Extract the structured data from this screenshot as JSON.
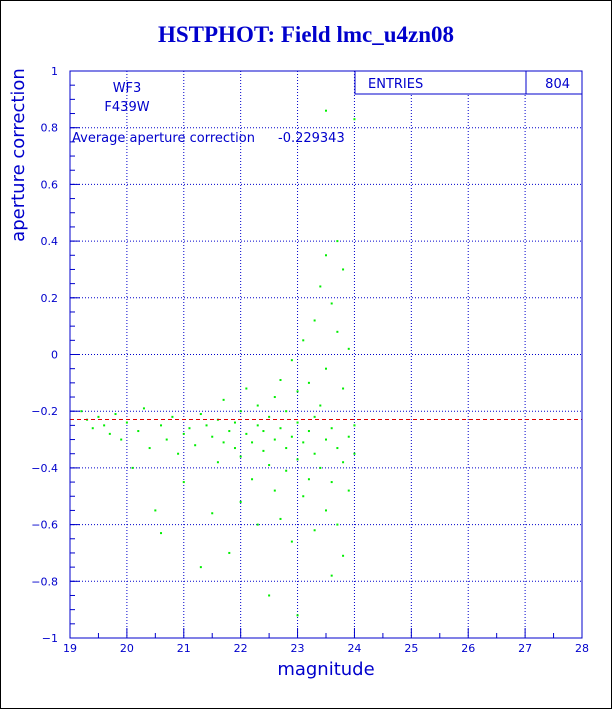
{
  "title": "HSTPHOT: Field lmc_u4zn08",
  "colors": {
    "axis": "#0000cc",
    "grid": "#0000cc",
    "points": "#00ee00",
    "average_line": "#dd0000",
    "title": "#0000cc"
  },
  "chart_data": {
    "type": "scatter",
    "title": "HSTPHOT: Field lmc_u4zn08",
    "xlabel": "magnitude",
    "ylabel": "aperture correction",
    "xlim": [
      19,
      28
    ],
    "ylim": [
      -1,
      1
    ],
    "x_ticks": [
      "19",
      "20",
      "21",
      "22",
      "23",
      "24",
      "25",
      "26",
      "27",
      "28"
    ],
    "y_ticks": [
      "1",
      "0.8",
      "0.6",
      "0.4",
      "0.2",
      "0",
      "-0.2",
      "-0.4",
      "-0.6",
      "-0.8",
      "-1"
    ],
    "grid": true,
    "camera": "WF3",
    "filter": "F439W",
    "average_label": "Average aperture correction",
    "average_value": "-0.229343",
    "average_y": -0.229343,
    "stats": {
      "label": "ENTRIES",
      "value": "804"
    },
    "series": [
      {
        "points": [
          [
            19.2,
            -0.2
          ],
          [
            19.3,
            -0.23
          ],
          [
            19.4,
            -0.26
          ],
          [
            19.5,
            -0.22
          ],
          [
            19.6,
            -0.25
          ],
          [
            19.7,
            -0.28
          ],
          [
            19.8,
            -0.21
          ],
          [
            19.9,
            -0.3
          ],
          [
            20.0,
            -0.24
          ],
          [
            20.1,
            -0.4
          ],
          [
            20.2,
            -0.27
          ],
          [
            20.3,
            -0.19
          ],
          [
            20.4,
            -0.33
          ],
          [
            20.5,
            -0.55
          ],
          [
            20.6,
            -0.25
          ],
          [
            20.6,
            -0.63
          ],
          [
            20.7,
            -0.3
          ],
          [
            20.8,
            -0.22
          ],
          [
            20.9,
            -0.35
          ],
          [
            21.0,
            -0.28
          ],
          [
            21.0,
            -0.45
          ],
          [
            21.1,
            -0.26
          ],
          [
            21.2,
            -0.32
          ],
          [
            21.3,
            -0.21
          ],
          [
            21.3,
            -0.75
          ],
          [
            21.4,
            -0.25
          ],
          [
            21.5,
            -0.29
          ],
          [
            21.5,
            -0.56
          ],
          [
            21.6,
            -0.23
          ],
          [
            21.6,
            -0.38
          ],
          [
            21.7,
            -0.31
          ],
          [
            21.7,
            -0.16
          ],
          [
            21.8,
            -0.27
          ],
          [
            21.8,
            -0.7
          ],
          [
            21.9,
            -0.33
          ],
          [
            21.9,
            -0.24
          ],
          [
            22.0,
            -0.2
          ],
          [
            22.0,
            -0.36
          ],
          [
            22.0,
            -0.52
          ],
          [
            22.1,
            -0.28
          ],
          [
            22.1,
            -0.12
          ],
          [
            22.2,
            -0.31
          ],
          [
            22.2,
            -0.44
          ],
          [
            22.3,
            -0.25
          ],
          [
            22.3,
            -0.6
          ],
          [
            22.3,
            -0.18
          ],
          [
            22.4,
            -0.34
          ],
          [
            22.4,
            -0.27
          ],
          [
            22.5,
            -0.39
          ],
          [
            22.5,
            -0.22
          ],
          [
            22.5,
            -0.85
          ],
          [
            22.6,
            -0.3
          ],
          [
            22.6,
            -0.48
          ],
          [
            22.6,
            -0.15
          ],
          [
            22.7,
            -0.26
          ],
          [
            22.7,
            -0.58
          ],
          [
            22.7,
            -0.09
          ],
          [
            22.8,
            -0.33
          ],
          [
            22.8,
            -0.41
          ],
          [
            22.8,
            -0.2
          ],
          [
            22.9,
            -0.29
          ],
          [
            22.9,
            -0.66
          ],
          [
            22.9,
            -0.02
          ],
          [
            23.0,
            -0.24
          ],
          [
            23.0,
            -0.37
          ],
          [
            23.0,
            -0.92
          ],
          [
            23.0,
            -0.13
          ],
          [
            23.1,
            -0.31
          ],
          [
            23.1,
            -0.5
          ],
          [
            23.1,
            0.05
          ],
          [
            23.2,
            -0.27
          ],
          [
            23.2,
            -0.44
          ],
          [
            23.2,
            -0.1
          ],
          [
            23.3,
            -0.35
          ],
          [
            23.3,
            -0.62
          ],
          [
            23.3,
            0.12
          ],
          [
            23.3,
            -0.22
          ],
          [
            23.4,
            -0.4
          ],
          [
            23.4,
            -0.18
          ],
          [
            23.4,
            0.24
          ],
          [
            23.5,
            -0.3
          ],
          [
            23.5,
            -0.55
          ],
          [
            23.5,
            0.35
          ],
          [
            23.5,
            -0.05
          ],
          [
            23.5,
            0.86
          ],
          [
            23.6,
            -0.45
          ],
          [
            23.6,
            -0.26
          ],
          [
            23.6,
            0.18
          ],
          [
            23.6,
            -0.78
          ],
          [
            23.7,
            -0.33
          ],
          [
            23.7,
            0.08
          ],
          [
            23.7,
            0.4
          ],
          [
            23.7,
            -0.6
          ],
          [
            23.8,
            -0.38
          ],
          [
            23.8,
            -0.12
          ],
          [
            23.8,
            0.3
          ],
          [
            23.8,
            -0.71
          ],
          [
            23.9,
            -0.29
          ],
          [
            23.9,
            -0.48
          ],
          [
            23.9,
            0.02
          ],
          [
            24.0,
            -0.25
          ],
          [
            24.0,
            -0.35
          ],
          [
            24.0,
            0.83
          ]
        ]
      }
    ]
  }
}
